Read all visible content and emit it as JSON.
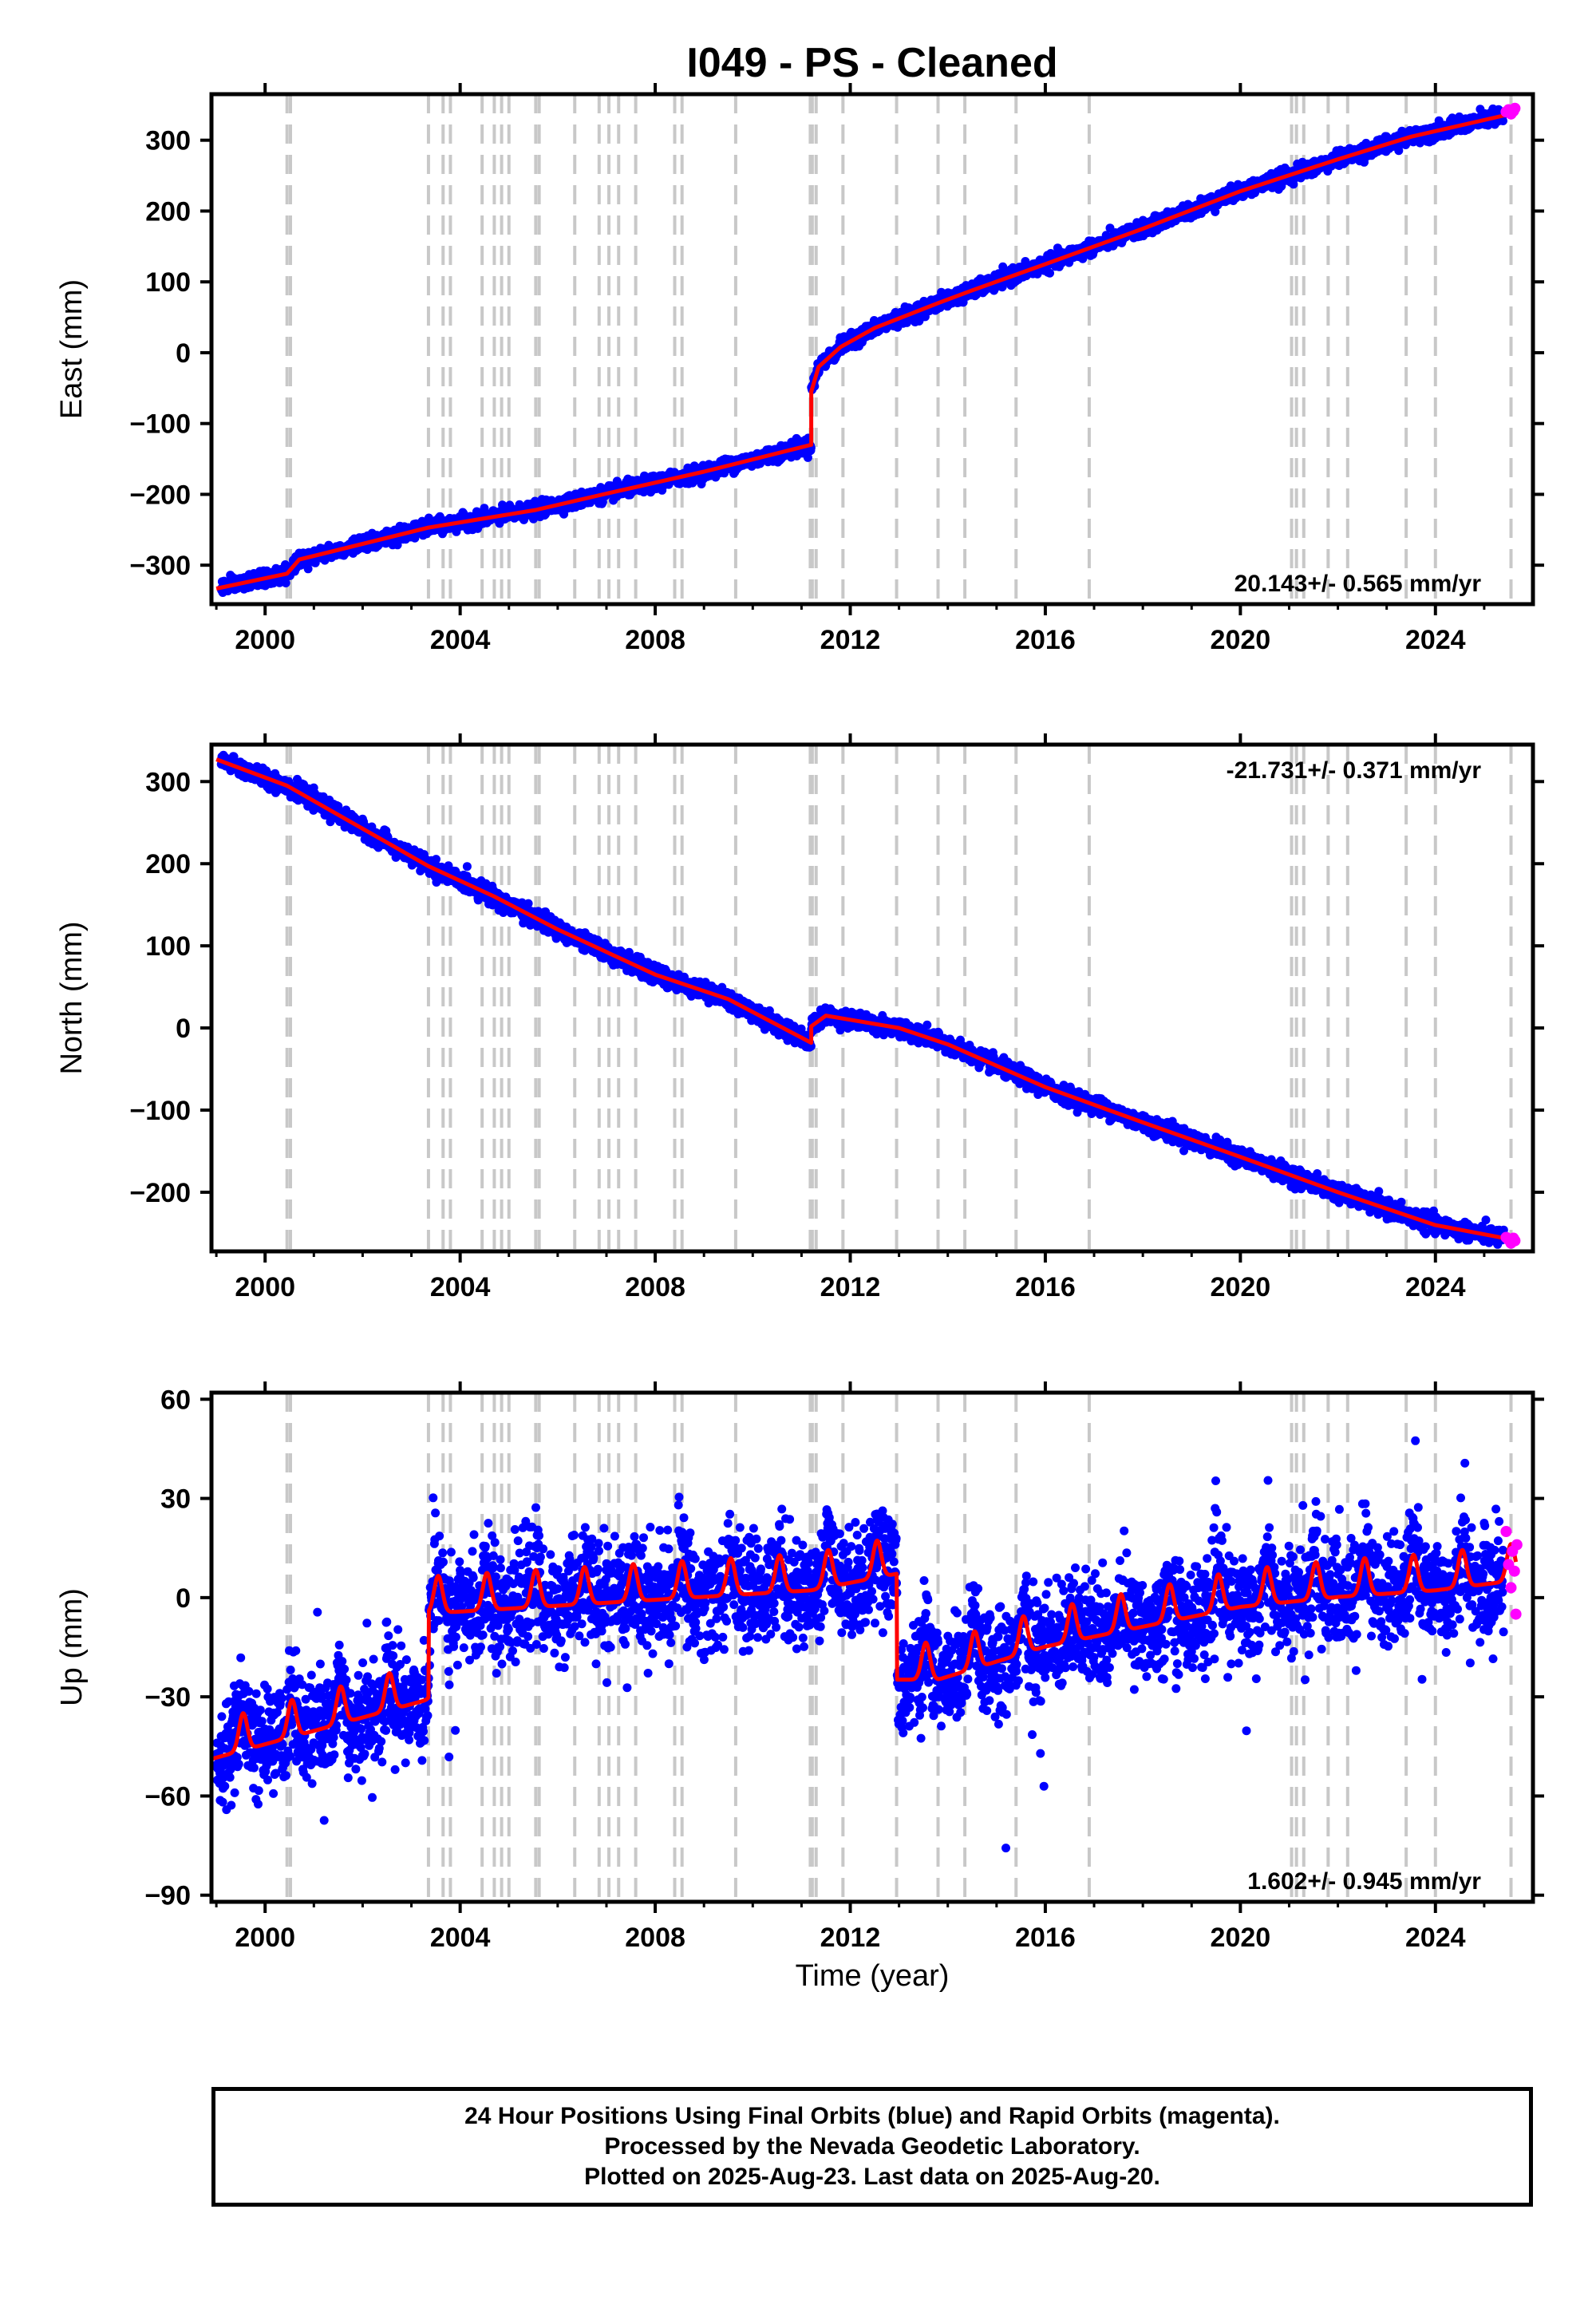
{
  "chart_data": {
    "title": "I049  - PS - Cleaned",
    "type": "scatter",
    "x_label": "Time (year)",
    "x_range": [
      1998.9,
      2026.0
    ],
    "x_ticks": [
      2000,
      2004,
      2008,
      2012,
      2016,
      2020,
      2024
    ],
    "x_tick_labels": [
      "2000",
      "2004",
      "2008",
      "2012",
      "2016",
      "2020",
      "2024"
    ],
    "colors": {
      "final_orbits": "#0000ff",
      "rapid_orbits": "#ff00ff",
      "model": "#ff0000",
      "steps": "#c8c8c8"
    },
    "step_epochs": [
      2000.45,
      2000.52,
      2003.35,
      2003.65,
      2003.8,
      2004.45,
      2004.7,
      2004.85,
      2005.0,
      2005.55,
      2005.62,
      2006.35,
      2006.85,
      2007.05,
      2007.25,
      2007.6,
      2008.4,
      2008.55,
      2009.65,
      2011.18,
      2011.22,
      2011.3,
      2011.85,
      2012.95,
      2013.8,
      2014.35,
      2015.4,
      2016.9,
      2021.05,
      2021.15,
      2021.3,
      2021.8,
      2022.2,
      2023.4,
      2024.0,
      2025.55
    ],
    "panels": [
      {
        "name": "east",
        "y_label": "East (mm)",
        "y_range": [
          -355,
          365
        ],
        "y_ticks": [
          -300,
          -200,
          -100,
          0,
          100,
          200,
          300
        ],
        "y_tick_labels": [
          "−300",
          "−200",
          "−100",
          "0",
          "100",
          "200",
          "300"
        ],
        "rate_text": "20.143+/- 0.565 mm/yr",
        "rate_position": "bottom-right",
        "model": [
          [
            1999.0,
            -333
          ],
          [
            2000.45,
            -312
          ],
          [
            2000.7,
            -292
          ],
          [
            2003.35,
            -247
          ],
          [
            2005.55,
            -222
          ],
          [
            2007.0,
            -199
          ],
          [
            2009.0,
            -168
          ],
          [
            2011.2,
            -130
          ],
          [
            2011.2,
            -55
          ],
          [
            2011.35,
            -20
          ],
          [
            2011.8,
            8
          ],
          [
            2012.5,
            35
          ],
          [
            2013.8,
            70
          ],
          [
            2014.5,
            88
          ],
          [
            2016.0,
            125
          ],
          [
            2018.0,
            175
          ],
          [
            2020.0,
            228
          ],
          [
            2022.0,
            273
          ],
          [
            2023.5,
            305
          ],
          [
            2025.6,
            338
          ]
        ],
        "scatter_noise": 5,
        "rapid": [
          [
            2025.45,
            340
          ],
          [
            2025.5,
            343
          ],
          [
            2025.55,
            337
          ],
          [
            2025.6,
            341
          ],
          [
            2025.63,
            345
          ]
        ]
      },
      {
        "name": "north",
        "y_label": "North (mm)",
        "y_range": [
          -272,
          345
        ],
        "y_ticks": [
          -200,
          -100,
          0,
          100,
          200,
          300
        ],
        "y_tick_labels": [
          "−200",
          "−100",
          "0",
          "100",
          "200",
          "300"
        ],
        "rate_text": "-21.731+/- 0.371 mm/yr",
        "rate_position": "top-right",
        "model": [
          [
            1999.0,
            327
          ],
          [
            2000.45,
            295
          ],
          [
            2003.35,
            197
          ],
          [
            2004.7,
            160
          ],
          [
            2006.0,
            120
          ],
          [
            2008.0,
            65
          ],
          [
            2009.5,
            35
          ],
          [
            2011.2,
            -18
          ],
          [
            2011.2,
            2
          ],
          [
            2011.5,
            15
          ],
          [
            2012.0,
            10
          ],
          [
            2013.0,
            0
          ],
          [
            2014.0,
            -20
          ],
          [
            2016.0,
            -72
          ],
          [
            2018.0,
            -115
          ],
          [
            2020.0,
            -157
          ],
          [
            2022.0,
            -200
          ],
          [
            2024.0,
            -240
          ],
          [
            2025.6,
            -258
          ]
        ],
        "scatter_noise": 5,
        "rapid": [
          [
            2025.45,
            -255
          ],
          [
            2025.5,
            -258
          ],
          [
            2025.55,
            -262
          ],
          [
            2025.6,
            -256
          ],
          [
            2025.63,
            -259
          ]
        ]
      },
      {
        "name": "up",
        "y_label": "Up (mm)",
        "y_range": [
          -92,
          62
        ],
        "y_ticks": [
          -90,
          -60,
          -30,
          0,
          30,
          60
        ],
        "y_tick_labels": [
          "−90",
          "−60",
          "−30",
          "0",
          "30",
          "60"
        ],
        "rate_text": "1.602+/- 0.945 mm/yr",
        "rate_position": "bottom-right",
        "model_offsets": [
          [
            1998.9,
            -46
          ],
          [
            2003.35,
            -28
          ],
          [
            2003.36,
            -2
          ],
          [
            2011.2,
            5
          ],
          [
            2012.95,
            10
          ],
          [
            2012.96,
            -22
          ],
          [
            2013.8,
            -22
          ],
          [
            2016.0,
            -12
          ],
          [
            2018.0,
            -6
          ],
          [
            2020.0,
            0
          ],
          [
            2022.0,
            3
          ],
          [
            2024.0,
            5
          ],
          [
            2025.65,
            8
          ]
        ],
        "seasonal_amplitude": 7,
        "scatter_noise": 8,
        "rapid": [
          [
            2025.45,
            20
          ],
          [
            2025.5,
            10
          ],
          [
            2025.55,
            3
          ],
          [
            2025.58,
            14
          ],
          [
            2025.62,
            8
          ],
          [
            2025.65,
            -5
          ],
          [
            2025.67,
            16
          ]
        ]
      }
    ]
  },
  "caption": {
    "line1": "24 Hour Positions Using Final Orbits (blue) and Rapid Orbits (magenta).",
    "line2": "Processed by the Nevada Geodetic Laboratory.",
    "line3": "Plotted on 2025-Aug-23. Last data on 2025-Aug-20."
  }
}
